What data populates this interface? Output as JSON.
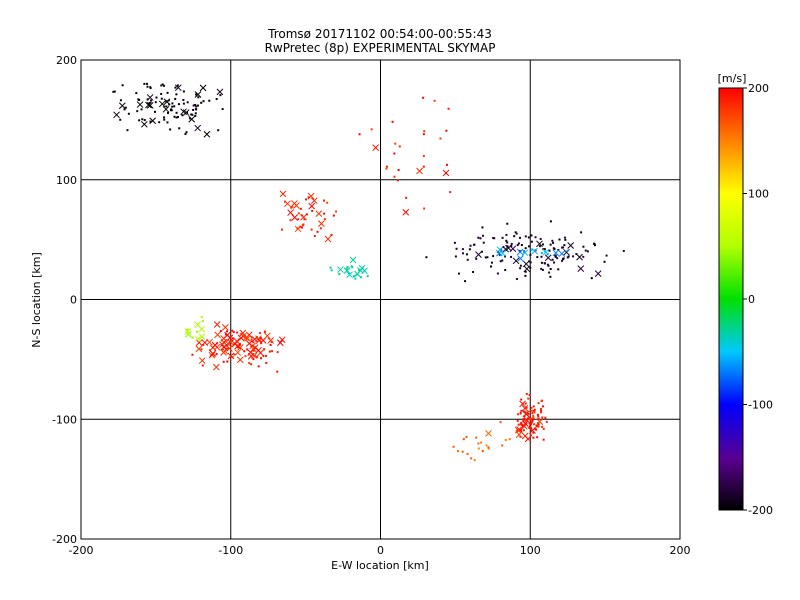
{
  "chart_data": {
    "type": "scatter",
    "title": "Tromsø 20171102 00:54:00-00:55:43",
    "subtitle": "RwPretec (8p) EXPERIMENTAL SKYMAP",
    "xlabel": "E-W location [km]",
    "ylabel": "N-S location [km]",
    "xlim": [
      -200,
      200
    ],
    "ylim": [
      -200,
      200
    ],
    "x_ticks": [
      "-200",
      "-100",
      "0",
      "100",
      "200"
    ],
    "y_ticks": [
      "-200",
      "-100",
      "0",
      "100",
      "200"
    ],
    "grid": true,
    "colorbar": {
      "label": "[m/s]",
      "range": [
        -200,
        200
      ],
      "ticks": [
        "-200",
        "-100",
        "0",
        "100",
        "200"
      ]
    },
    "clusters": [
      {
        "cx": -140,
        "cy": 160,
        "rx": 50,
        "ry": 30,
        "velocity": -200,
        "x_count": 20,
        "dot_count": 90
      },
      {
        "cx": -20,
        "cy": 25,
        "rx": 15,
        "ry": 10,
        "velocity": -30,
        "x_count": 8,
        "dot_count": 15
      },
      {
        "cx": 100,
        "cy": 40,
        "rx": 80,
        "ry": 30,
        "velocity": -190,
        "x_count": 14,
        "dot_count": 130
      },
      {
        "cx": 100,
        "cy": 40,
        "rx": 40,
        "ry": 8,
        "velocity": -60,
        "x_count": 10,
        "dot_count": 6
      },
      {
        "cx": -100,
        "cy": -40,
        "rx": 45,
        "ry": 25,
        "velocity": 190,
        "x_count": 55,
        "dot_count": 60
      },
      {
        "cx": -50,
        "cy": 70,
        "rx": 30,
        "ry": 30,
        "velocity": 190,
        "x_count": 14,
        "dot_count": 30
      },
      {
        "cx": 100,
        "cy": -100,
        "rx": 15,
        "ry": 25,
        "velocity": 190,
        "x_count": 14,
        "dot_count": 90
      },
      {
        "cx": 20,
        "cy": 120,
        "rx": 40,
        "ry": 60,
        "velocity": 190,
        "x_count": 4,
        "dot_count": 25
      },
      {
        "cx": 65,
        "cy": -120,
        "rx": 35,
        "ry": 20,
        "velocity": 160,
        "x_count": 1,
        "dot_count": 20
      },
      {
        "cx": -120,
        "cy": -25,
        "rx": 15,
        "ry": 15,
        "velocity": 50,
        "x_count": 6,
        "dot_count": 6
      }
    ]
  },
  "colors": {
    "frame": "#000000",
    "background": "#ffffff"
  }
}
